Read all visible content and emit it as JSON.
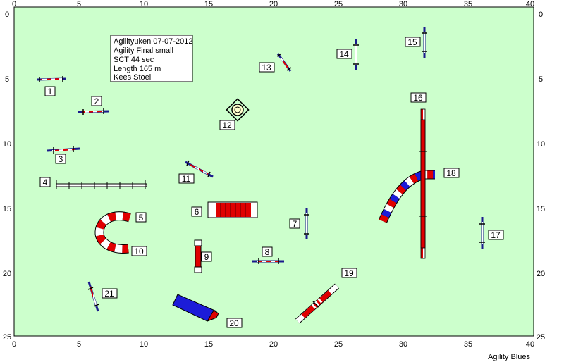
{
  "course": {
    "field_color": "#ccffcc",
    "x_ticks": [
      "0",
      "5",
      "10",
      "15",
      "20",
      "25",
      "30",
      "35",
      "40"
    ],
    "y_ticks": [
      "0",
      "5",
      "10",
      "15",
      "20",
      "25"
    ],
    "info_lines": [
      "Agilityuken 07-07-2012",
      "Agility  Final small",
      "SCT 44 sec",
      "Length 165 m",
      "Kees Stoel"
    ],
    "footer": "Agility Blues",
    "obstacle_numbers": [
      "1",
      "2",
      "3",
      "4",
      "5",
      "6",
      "7",
      "8",
      "9",
      "10",
      "11",
      "12",
      "13",
      "14",
      "15",
      "16",
      "17",
      "18",
      "19",
      "20",
      "21"
    ]
  }
}
